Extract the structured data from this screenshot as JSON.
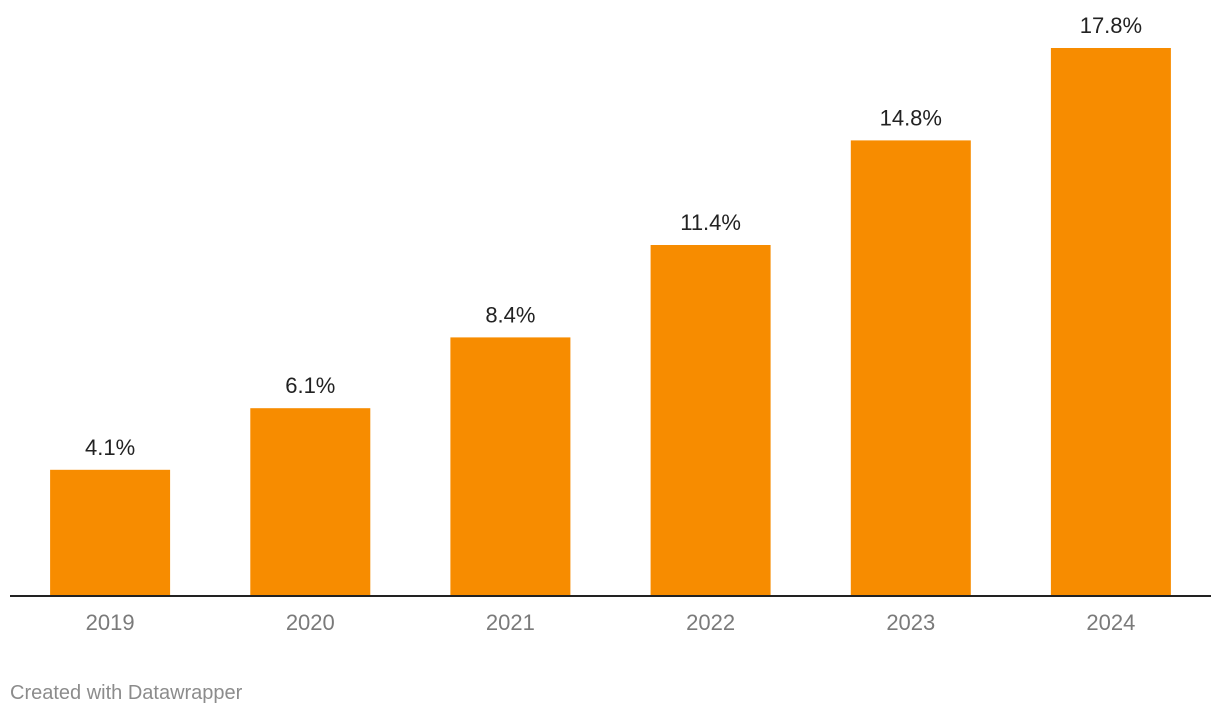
{
  "chart_data": {
    "type": "bar",
    "categories": [
      "2019",
      "2020",
      "2021",
      "2022",
      "2023",
      "2024"
    ],
    "values": [
      4.1,
      6.1,
      8.4,
      11.4,
      14.8,
      17.8
    ],
    "value_labels": [
      "4.1%",
      "6.1%",
      "8.4%",
      "11.4%",
      "14.8%",
      "17.8%"
    ],
    "title": "",
    "xlabel": "",
    "ylabel": "",
    "ylim": [
      0,
      17.8
    ],
    "grid": false,
    "bar_color": "#f78c00",
    "baseline_color": "#222222"
  },
  "footer": {
    "credit": "Created with Datawrapper"
  }
}
